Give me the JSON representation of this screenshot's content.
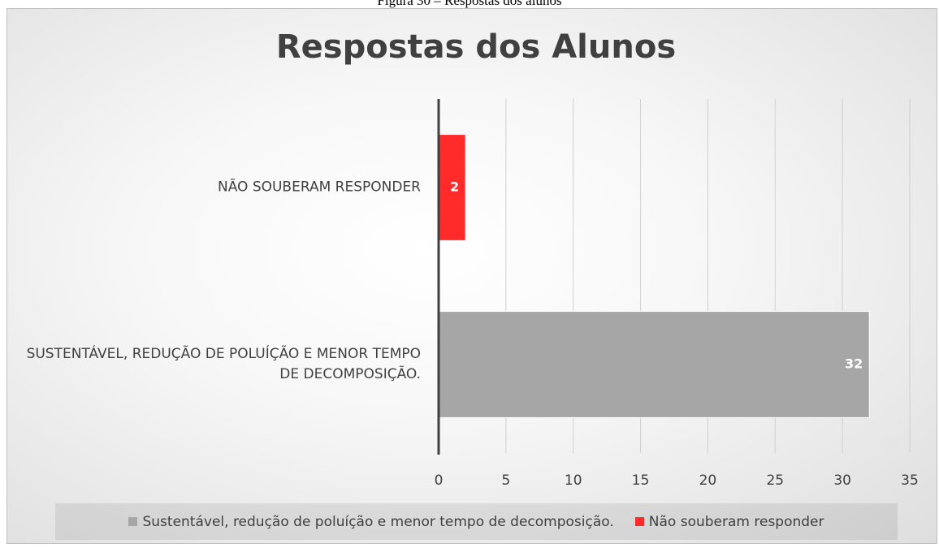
{
  "caption": "Figura 30 – Respostas dos alunos",
  "chart_data": {
    "type": "hbar",
    "title": "Respostas dos Alunos",
    "categories": [
      "SUSTENTÁVEL, REDUÇÃO DE POLUÍÇÃO E MENOR TEMPO DE DECOMPOSIÇÃO.",
      "NÃO SOUBERAM RESPONDER"
    ],
    "series": [
      {
        "name": "Sustentável, redução de poluíção e menor tempo de decomposição.",
        "color": "#a6a6a6",
        "values": [
          32,
          null
        ]
      },
      {
        "name": "Não souberam responder",
        "color": "#ff2a2a",
        "values": [
          null,
          2
        ]
      }
    ],
    "xlim": [
      0,
      35
    ],
    "xticks": [
      0,
      5,
      10,
      15,
      20,
      25,
      30,
      35
    ],
    "grid": true,
    "legend": "bottom"
  }
}
